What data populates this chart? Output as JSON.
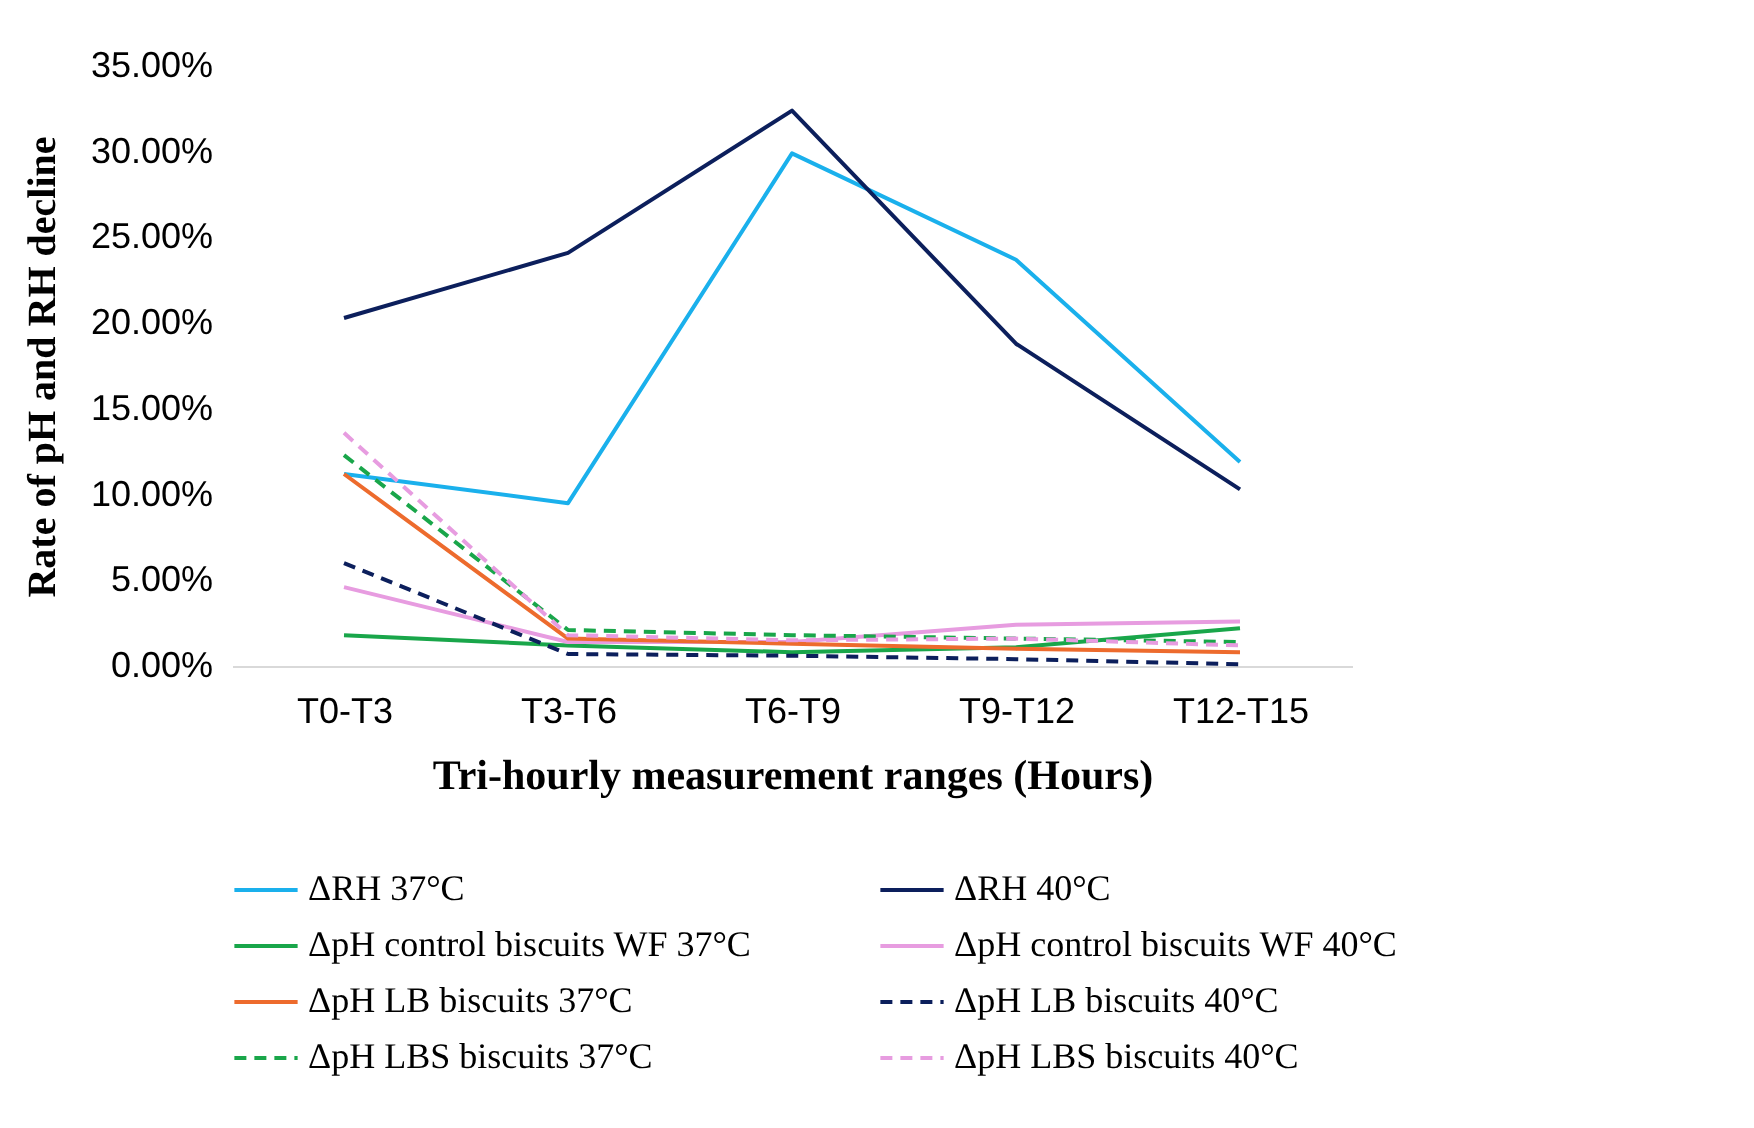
{
  "chart_data": {
    "type": "line",
    "xlabel": "Tri-hourly measurement ranges (Hours)",
    "ylabel": "Rate of pH and RH decline",
    "categories": [
      "T0-T3",
      "T3-T6",
      "T6-T9",
      "T9-T12",
      "T12-T15"
    ],
    "ylim": [
      0,
      35
    ],
    "yticks": [
      {
        "value": 0,
        "label": "0.00%"
      },
      {
        "value": 5,
        "label": "5.00%"
      },
      {
        "value": 10,
        "label": "10.00%"
      },
      {
        "value": 15,
        "label": "15.00%"
      },
      {
        "value": 20,
        "label": "20.00%"
      },
      {
        "value": 25,
        "label": "25.00%"
      },
      {
        "value": 30,
        "label": "30.00%"
      },
      {
        "value": 35,
        "label": "35.00%"
      }
    ],
    "grid": false,
    "legend": "bottom",
    "marker": "none",
    "series": [
      {
        "name": "ΔRH 37°C",
        "color": "#1ab0ec",
        "line_style": "solid",
        "values": [
          11.2,
          9.5,
          29.9,
          23.7,
          11.9
        ]
      },
      {
        "name": "ΔRH 40°C",
        "color": "#0c1f5c",
        "line_style": "solid",
        "values": [
          20.3,
          24.1,
          32.4,
          18.8,
          10.3
        ]
      },
      {
        "name": "ΔpH control biscuits WF 37°C",
        "color": "#19a64a",
        "line_style": "solid",
        "values": [
          1.8,
          1.2,
          0.8,
          1.1,
          2.2
        ]
      },
      {
        "name": "ΔpH control biscuits WF 40°C",
        "color": "#e79ce0",
        "line_style": "solid",
        "values": [
          4.6,
          1.4,
          1.4,
          2.4,
          2.6
        ]
      },
      {
        "name": "ΔpH LB biscuits 37°C",
        "color": "#ed6b2d",
        "line_style": "solid",
        "values": [
          11.2,
          1.6,
          1.3,
          1.0,
          0.8
        ]
      },
      {
        "name": "ΔpH LB biscuits 40°C",
        "color": "#0c1f5c",
        "line_style": "dashed",
        "values": [
          6.0,
          0.7,
          0.6,
          0.4,
          0.1
        ]
      },
      {
        "name": "ΔpH LBS biscuits 37°C",
        "color": "#19a64a",
        "line_style": "dashed",
        "values": [
          12.3,
          2.1,
          1.8,
          1.6,
          1.4
        ]
      },
      {
        "name": "ΔpH LBS biscuits 40°C",
        "color": "#e79ce0",
        "line_style": "dashed",
        "values": [
          13.6,
          1.8,
          1.5,
          1.6,
          1.2
        ]
      }
    ]
  }
}
